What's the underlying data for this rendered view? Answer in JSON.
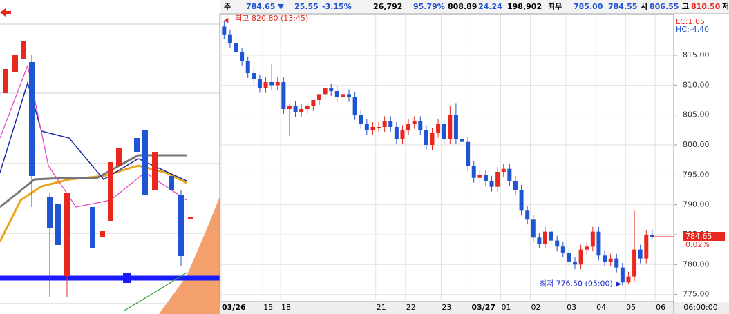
{
  "header": {
    "fields": [
      "주",
      "784.65 ▼",
      "25.55",
      "-3.15%",
      "26,792",
      "95.79%",
      "808.89",
      "24.24",
      "198,902",
      "최우",
      "785.00",
      "784.55",
      "시",
      "806.55",
      "고",
      "810.50",
      "저"
    ]
  },
  "chart_data": {
    "type": "candlestick",
    "categories": [
      "03/26",
      null,
      null,
      null,
      null,
      null,
      null,
      "15",
      null,
      null,
      "18",
      null,
      null,
      null,
      null,
      null,
      null,
      null,
      null,
      null,
      null,
      null,
      null,
      null,
      null,
      null,
      "21",
      null,
      null,
      null,
      null,
      "22",
      null,
      null,
      null,
      null,
      null,
      "23",
      null,
      null,
      null,
      null,
      "03/27",
      null,
      null,
      null,
      null,
      "01",
      null,
      null,
      null,
      null,
      "02",
      null,
      null,
      null,
      null,
      null,
      "03",
      null,
      null,
      null,
      null,
      "04",
      null,
      null,
      null,
      null,
      "05",
      null,
      null,
      null,
      null,
      "06",
      null,
      null
    ],
    "series": {
      "open": [
        819.8,
        818.5,
        817,
        815.5,
        814,
        812,
        811,
        809.5,
        810.5,
        810,
        810.5,
        806,
        806.5,
        805.5,
        806,
        806.5,
        807.5,
        808.5,
        809.5,
        809,
        808,
        808.5,
        808,
        805,
        803.5,
        802.5,
        803,
        803,
        804,
        803,
        801,
        802.5,
        803.5,
        804,
        802.5,
        800,
        802,
        803.5,
        801,
        805,
        801,
        800.5,
        796.5,
        794.5,
        795,
        794,
        793,
        795.5,
        796,
        794,
        792.5,
        789,
        787.5,
        784.5,
        783.5,
        785.5,
        784,
        783,
        782,
        780.5,
        780,
        782.5,
        783,
        785.5,
        781.5,
        780.5,
        781,
        779.5,
        777,
        778,
        782.5,
        781,
        785,
        null,
        null,
        null
      ],
      "high": [
        820.8,
        819.3,
        817.8,
        816.3,
        814.8,
        812.8,
        811.8,
        811.3,
        813.5,
        811.3,
        811.3,
        806.8,
        807.3,
        806.8,
        806.8,
        807.3,
        808.3,
        809.3,
        810.3,
        809.8,
        809.3,
        809.3,
        808.8,
        805.8,
        804.3,
        803.8,
        803.8,
        804.8,
        804.8,
        803.8,
        803.3,
        804.3,
        804.8,
        804.8,
        803.3,
        802.8,
        804.3,
        804.3,
        806.5,
        807,
        801.8,
        801.3,
        797.3,
        795.8,
        795.8,
        794.8,
        796.3,
        796.8,
        796.8,
        794.8,
        793.3,
        789.8,
        788.3,
        785.3,
        786.3,
        786.3,
        784.8,
        783.8,
        782.8,
        781.3,
        783.3,
        783.8,
        786.3,
        786.3,
        782.3,
        781.8,
        781.8,
        780.3,
        778.8,
        789,
        783.3,
        785.8,
        785.8,
        null,
        null,
        null
      ],
      "low": [
        817.7,
        816.2,
        814.7,
        813.2,
        811.2,
        810.2,
        808.7,
        808.7,
        809.2,
        809.2,
        805.2,
        801.5,
        804.7,
        804.7,
        805.2,
        805.7,
        806.7,
        807.7,
        808.2,
        807.2,
        807.2,
        807.2,
        804.2,
        802.7,
        801.7,
        801.7,
        802.2,
        802.2,
        802.2,
        800.2,
        800.2,
        801.7,
        802.7,
        801.7,
        799.2,
        799.2,
        801.2,
        800.2,
        800.2,
        800.2,
        799.7,
        795.7,
        793.7,
        793.7,
        793.2,
        792.2,
        792.2,
        794.7,
        793.2,
        791.7,
        788.2,
        786.7,
        783.7,
        782.7,
        782.7,
        783.2,
        782.2,
        781.2,
        779.7,
        779.2,
        779.2,
        781.7,
        782.2,
        780.7,
        779.7,
        779.7,
        778.7,
        776.5,
        776.7,
        777.2,
        780.2,
        780.2,
        784.2,
        null,
        null,
        null
      ],
      "close": [
        818.5,
        817,
        815.5,
        814,
        812,
        811,
        809.5,
        810.5,
        810,
        810.5,
        806,
        806.5,
        805.5,
        806,
        806.5,
        807.5,
        808.5,
        809.5,
        809,
        808,
        808.5,
        808,
        805,
        803.5,
        802.5,
        803,
        803,
        804,
        803,
        801,
        802.5,
        803.5,
        804,
        802.5,
        800,
        802,
        803.5,
        801,
        805,
        801,
        800.5,
        796.5,
        794.5,
        795,
        794,
        793,
        795.5,
        796,
        794,
        792.5,
        789,
        787.5,
        784.5,
        783.5,
        785.5,
        784,
        783,
        782,
        780.5,
        780,
        782.5,
        783,
        785.5,
        781.5,
        780.5,
        781,
        779.5,
        777,
        778,
        782.5,
        781,
        785,
        784.65,
        null,
        null,
        null
      ]
    },
    "up_color": "#e8281e",
    "down_color": "#1f54d4",
    "ylim": [
      773.8,
      821.7
    ],
    "yticks": [
      {
        "value": 775,
        "label": "775.00"
      },
      {
        "value": 780,
        "label": "780.00"
      },
      {
        "value": 785,
        "label": "785.00"
      },
      {
        "value": 790,
        "label": "790.00"
      },
      {
        "value": 795,
        "label": "795.00"
      },
      {
        "value": 800,
        "label": "800.00"
      },
      {
        "value": 805,
        "label": "805.00"
      },
      {
        "value": 810,
        "label": "810.00"
      },
      {
        "value": 815,
        "label": "815.00"
      }
    ],
    "grid": true,
    "high_annotation": "최고 820.80 (13:45)",
    "low_annotation": "최저 776.50 (05:00)",
    "lc_label": "LC:1.05",
    "hc_label": "HC:-4.40",
    "price_tag": "784.65",
    "price_change": "0.02%",
    "cursor_time": "06:00:00"
  }
}
